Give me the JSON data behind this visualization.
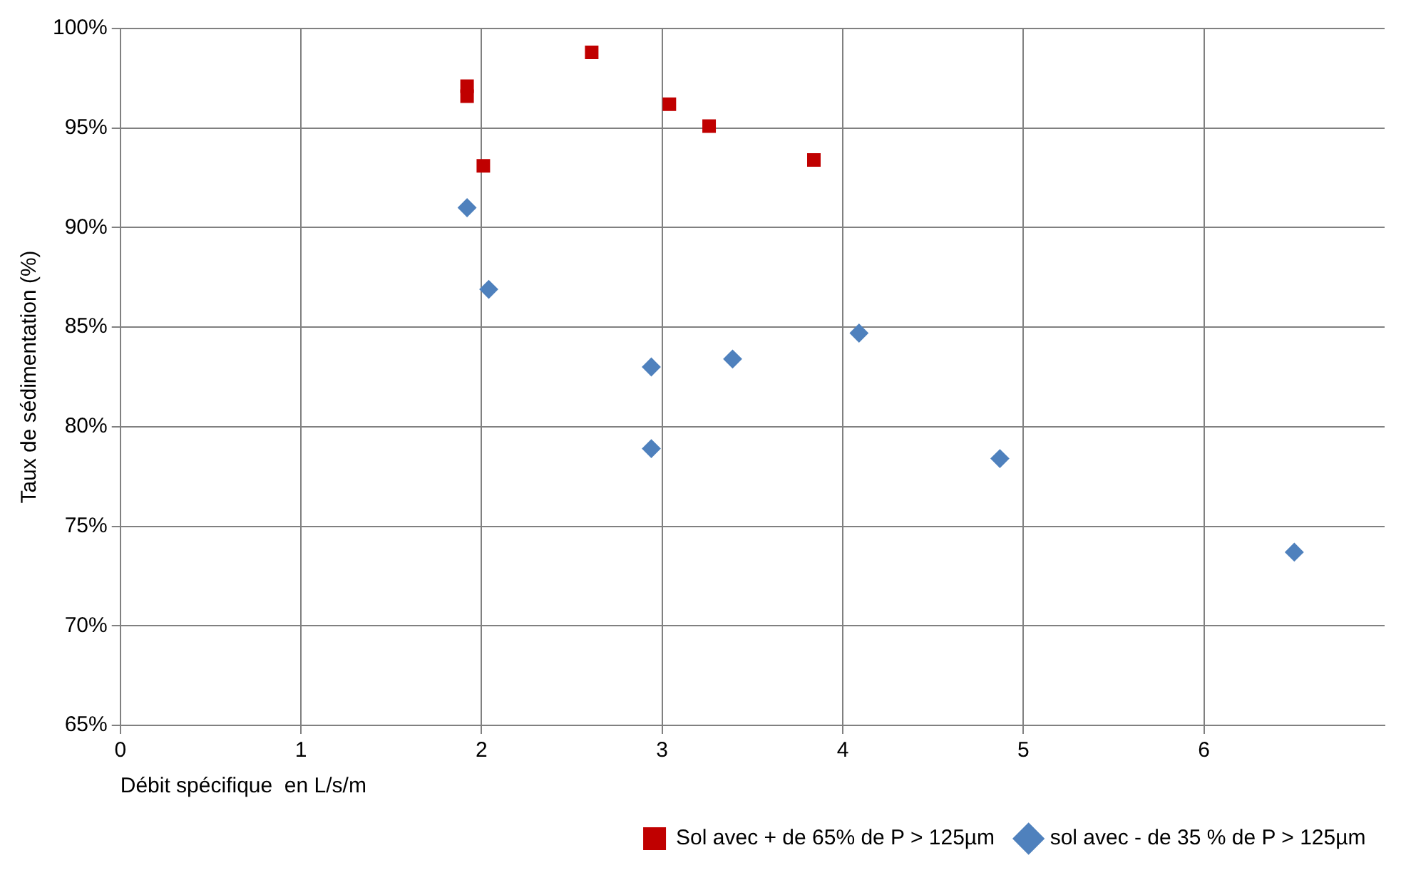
{
  "chart_data": {
    "type": "scatter",
    "xlabel": "Débit spécifique  en L/s/m",
    "ylabel": "Taux de sédimentation (%)",
    "xlim": [
      0,
      7
    ],
    "xticks": [
      0,
      1,
      2,
      3,
      4,
      5,
      6
    ],
    "ylim": [
      65,
      100
    ],
    "yticks": [
      {
        "value": 65,
        "label": "65%"
      },
      {
        "value": 70,
        "label": "70%"
      },
      {
        "value": 75,
        "label": "75%"
      },
      {
        "value": 80,
        "label": "80%"
      },
      {
        "value": 85,
        "label": "85%"
      },
      {
        "value": 90,
        "label": "90%"
      },
      {
        "value": 95,
        "label": "95%"
      },
      {
        "value": 100,
        "label": "100%"
      }
    ],
    "grid": true,
    "legend": "bottom right",
    "series": [
      {
        "name": "Sol avec + de 65% de P > 125µm",
        "color": "#c00000",
        "marker": "square",
        "x": [
          1.92,
          1.92,
          2.01,
          2.61,
          3.04,
          3.26,
          3.84
        ],
        "values": [
          97.1,
          96.6,
          93.1,
          98.8,
          96.2,
          95.1,
          93.4
        ]
      },
      {
        "name": "sol avec - de 35 % de P > 125µm",
        "color": "#4f81bd",
        "marker": "diamond",
        "x": [
          1.92,
          2.04,
          2.94,
          2.94,
          3.39,
          4.09,
          4.87,
          6.5
        ],
        "values": [
          91.0,
          86.9,
          83.0,
          78.9,
          83.4,
          84.7,
          78.4,
          73.7
        ]
      }
    ]
  }
}
